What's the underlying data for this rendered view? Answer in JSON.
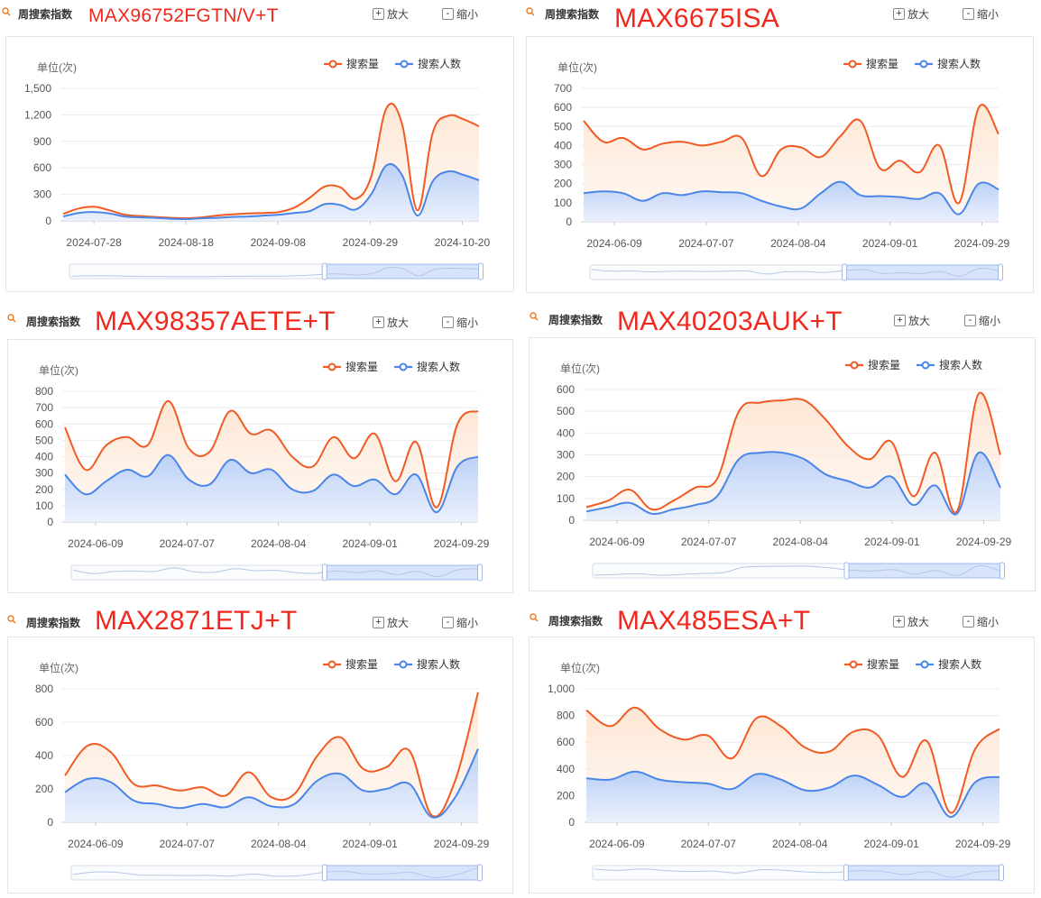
{
  "common": {
    "header_label": "周搜索指数",
    "zoom_in_label": "放大",
    "zoom_out_label": "缩小",
    "unit_label": "单位(次)",
    "colors": {
      "search_volume": "#f05a23",
      "searchers": "#4a86e8",
      "part_number": "#f0281e"
    }
  },
  "panels": [
    {
      "part_number": "MAX96752FGTN/V+T",
      "chart_data": {
        "type": "area",
        "ylabel": "单位(次)",
        "ylim": [
          0,
          1500
        ],
        "yticks": [
          "0",
          "300",
          "600",
          "900",
          "1,200",
          "1,500"
        ],
        "xticks": [
          "2024-07-28",
          "2024-08-18",
          "2024-09-08",
          "2024-09-29",
          "2024-10-20"
        ],
        "legend": "top-right",
        "series": [
          {
            "name": "搜索量",
            "values": [
              80,
              140,
              160,
              120,
              70,
              55,
              45,
              35,
              30,
              40,
              60,
              75,
              85,
              90,
              100,
              150,
              260,
              390,
              380,
              250,
              500,
              1280,
              1100,
              120,
              1000,
              1190,
              1150,
              1070
            ]
          },
          {
            "name": "搜索人数",
            "values": [
              50,
              90,
              100,
              85,
              50,
              40,
              35,
              25,
              20,
              30,
              35,
              45,
              50,
              60,
              70,
              90,
              110,
              190,
              180,
              130,
              300,
              630,
              520,
              60,
              450,
              560,
              520,
              460
            ]
          }
        ]
      }
    },
    {
      "part_number": "MAX6675ISA",
      "chart_data": {
        "type": "area",
        "ylabel": "单位(次)",
        "ylim": [
          0,
          700
        ],
        "yticks": [
          "0",
          "100",
          "200",
          "300",
          "400",
          "500",
          "600",
          "700"
        ],
        "xticks": [
          "2024-06-09",
          "2024-07-07",
          "2024-08-04",
          "2024-09-01",
          "2024-09-29"
        ],
        "legend": "top-right",
        "series": [
          {
            "name": "搜索量",
            "values": [
              530,
              420,
              440,
              380,
              410,
              420,
              400,
              420,
              440,
              240,
              380,
              390,
              340,
              450,
              530,
              280,
              320,
              260,
              400,
              100,
              600,
              460
            ]
          },
          {
            "name": "搜索人数",
            "values": [
              150,
              160,
              150,
              110,
              150,
              140,
              160,
              155,
              150,
              110,
              80,
              70,
              150,
              210,
              140,
              135,
              130,
              120,
              150,
              40,
              200,
              170
            ]
          }
        ]
      }
    },
    {
      "part_number": "MAX98357AETE+T",
      "chart_data": {
        "type": "area",
        "ylabel": "单位(次)",
        "ylim": [
          0,
          800
        ],
        "yticks": [
          "0",
          "100",
          "200",
          "300",
          "400",
          "500",
          "600",
          "700",
          "800"
        ],
        "xticks": [
          "2024-06-09",
          "2024-07-07",
          "2024-08-04",
          "2024-09-01",
          "2024-09-29"
        ],
        "legend": "top-right",
        "series": [
          {
            "name": "搜索量",
            "values": [
              580,
              320,
              470,
              520,
              470,
              740,
              450,
              430,
              680,
              540,
              560,
              400,
              340,
              520,
              390,
              540,
              250,
              490,
              90,
              600,
              680
            ]
          },
          {
            "name": "搜索人数",
            "values": [
              290,
              170,
              250,
              320,
              280,
              410,
              260,
              230,
              380,
              300,
              320,
              200,
              190,
              290,
              220,
              260,
              170,
              290,
              60,
              340,
              400
            ]
          }
        ]
      }
    },
    {
      "part_number": "MAX40203AUK+T",
      "chart_data": {
        "type": "area",
        "ylabel": "单位(次)",
        "ylim": [
          0,
          600
        ],
        "yticks": [
          "0",
          "100",
          "200",
          "300",
          "400",
          "500",
          "600"
        ],
        "xticks": [
          "2024-06-09",
          "2024-07-07",
          "2024-08-04",
          "2024-09-01",
          "2024-09-29"
        ],
        "legend": "top-right",
        "series": [
          {
            "name": "搜索量",
            "values": [
              60,
              90,
              140,
              50,
              90,
              150,
              190,
              500,
              540,
              550,
              550,
              460,
              340,
              280,
              360,
              110,
              310,
              40,
              580,
              300
            ]
          },
          {
            "name": "搜索人数",
            "values": [
              40,
              60,
              80,
              30,
              50,
              70,
              110,
              280,
              310,
              310,
              280,
              210,
              180,
              150,
              200,
              70,
              160,
              30,
              310,
              150
            ]
          }
        ]
      }
    },
    {
      "part_number": "MAX2871ETJ+T",
      "chart_data": {
        "type": "area",
        "ylabel": "单位(次)",
        "ylim": [
          0,
          800
        ],
        "yticks": [
          "0",
          "200",
          "400",
          "600",
          "800"
        ],
        "xticks": [
          "2024-06-09",
          "2024-07-07",
          "2024-08-04",
          "2024-09-01",
          "2024-09-29"
        ],
        "legend": "top-right",
        "series": [
          {
            "name": "搜索量",
            "values": [
              280,
              460,
              420,
              230,
              220,
              190,
              210,
              160,
              300,
              150,
              170,
              400,
              510,
              320,
              330,
              430,
              40,
              250,
              780
            ]
          },
          {
            "name": "搜索人数",
            "values": [
              180,
              260,
              240,
              130,
              110,
              85,
              110,
              90,
              150,
              95,
              110,
              250,
              290,
              190,
              200,
              230,
              30,
              150,
              440
            ]
          }
        ]
      }
    },
    {
      "part_number": "MAX485ESA+T",
      "chart_data": {
        "type": "area",
        "ylabel": "单位(次)",
        "ylim": [
          0,
          1000
        ],
        "yticks": [
          "0",
          "200",
          "400",
          "600",
          "800",
          "1,000"
        ],
        "xticks": [
          "2024-06-09",
          "2024-07-07",
          "2024-08-04",
          "2024-09-01",
          "2024-09-29"
        ],
        "legend": "top-right",
        "series": [
          {
            "name": "搜索量",
            "values": [
              840,
              720,
              860,
              700,
              620,
              650,
              480,
              780,
              720,
              560,
              530,
              680,
              650,
              340,
              610,
              70,
              550,
              700
            ]
          },
          {
            "name": "搜索人数",
            "values": [
              330,
              320,
              380,
              320,
              300,
              290,
              250,
              360,
              320,
              240,
              260,
              350,
              280,
              190,
              290,
              40,
              300,
              340
            ]
          }
        ]
      }
    }
  ]
}
